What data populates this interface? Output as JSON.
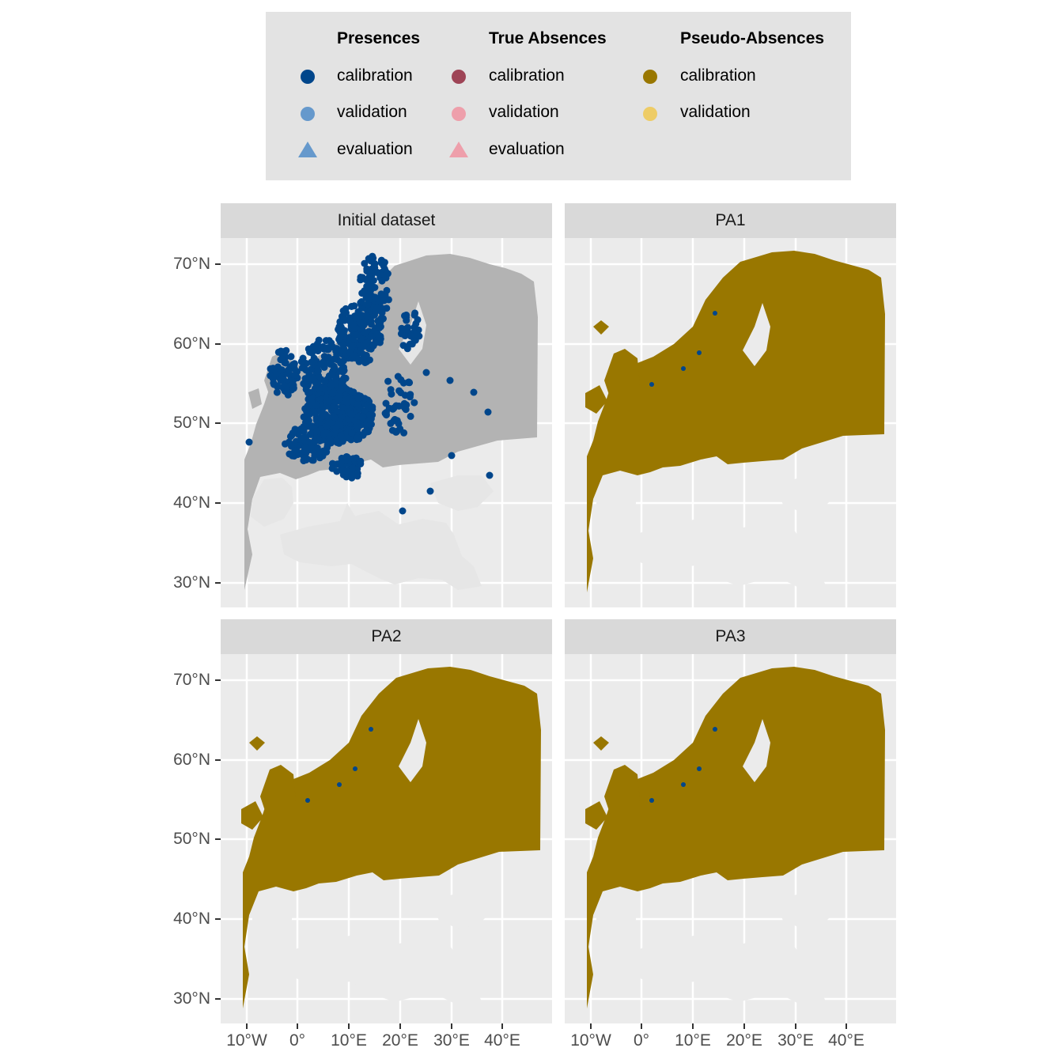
{
  "legend": {
    "groups": [
      {
        "title": "Presences",
        "items": [
          {
            "label": "calibration",
            "shape": "circle",
            "color": "#00468B"
          },
          {
            "label": "validation",
            "shape": "circle",
            "color": "#6699CC"
          },
          {
            "label": "evaluation",
            "shape": "triangle",
            "color": "#6699CC"
          }
        ]
      },
      {
        "title": "True Absences",
        "items": [
          {
            "label": "calibration",
            "shape": "circle",
            "color": "#9E4456"
          },
          {
            "label": "validation",
            "shape": "circle",
            "color": "#EE9FAB"
          },
          {
            "label": "evaluation",
            "shape": "triangle",
            "color": "#EE9FAB"
          }
        ]
      },
      {
        "title": "Pseudo-Absences",
        "items": [
          {
            "label": "calibration",
            "shape": "circle",
            "color": "#997700"
          },
          {
            "label": "validation",
            "shape": "circle",
            "color": "#EECC66"
          }
        ]
      }
    ]
  },
  "panels": [
    {
      "title": "Initial dataset",
      "type": "presences"
    },
    {
      "title": "PA1",
      "type": "pseudo"
    },
    {
      "title": "PA2",
      "type": "pseudo"
    },
    {
      "title": "PA3",
      "type": "pseudo"
    }
  ],
  "axes": {
    "y_ticks": [
      "70°N",
      "60°N",
      "50°N",
      "40°N",
      "30°N"
    ],
    "x_ticks": [
      "10°W",
      "0°",
      "10°E",
      "20°E",
      "30°E",
      "40°E"
    ]
  },
  "colors": {
    "panel_bg": "#ebebeb",
    "land": "#b3b3b3",
    "sea": "#e6e6e6",
    "presence": "#00468B",
    "pseudo_absence": "#997700"
  }
}
